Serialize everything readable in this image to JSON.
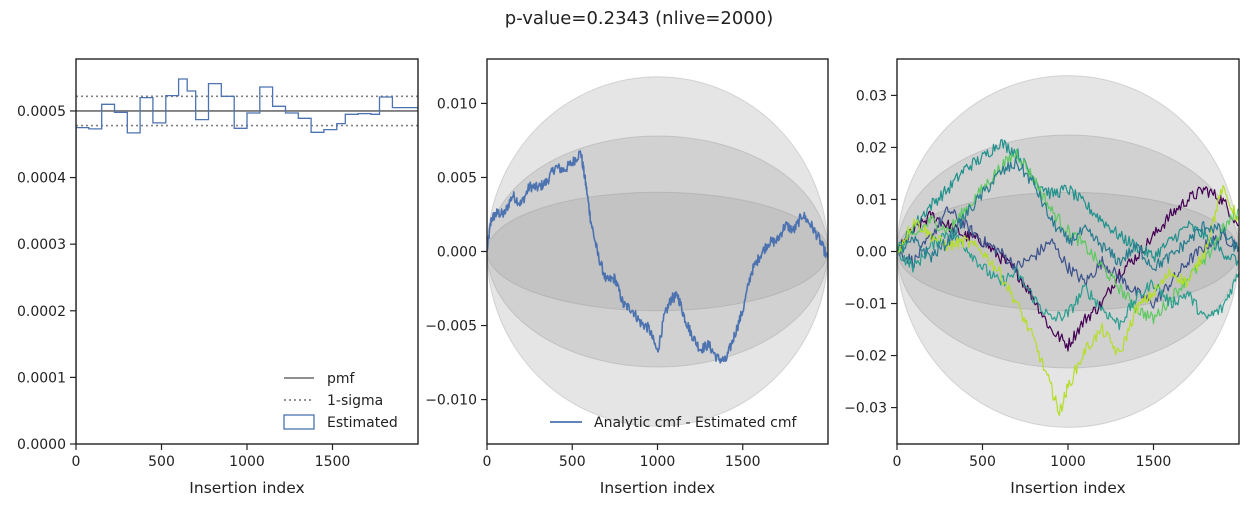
{
  "figure": {
    "title": "p-value=0.2343 (nlive=2000)"
  },
  "chart_data": [
    {
      "type": "line",
      "panel": "pmf-histogram",
      "xlabel": "Insertion index",
      "ylabel": "",
      "xlim": [
        0,
        2000
      ],
      "ylim": [
        0,
        0.000578
      ],
      "xticks": [
        0,
        500,
        1000,
        1500
      ],
      "xtick_labels": [
        "0",
        "500",
        "1000",
        "1500"
      ],
      "yticks": [
        0,
        0.0001,
        0.0002,
        0.0003,
        0.0004,
        0.0005
      ],
      "ytick_labels": [
        "0.0000",
        "0.0001",
        "0.0002",
        "0.0003",
        "0.0004",
        "0.0005"
      ],
      "pmf": 0.0005,
      "sigma_band": [
        0.000478,
        0.000522
      ],
      "hist_bin_edges": [
        0,
        75,
        150,
        225,
        300,
        375,
        450,
        525,
        600,
        650,
        700,
        775,
        850,
        925,
        1000,
        1075,
        1150,
        1225,
        1300,
        1375,
        1450,
        1525,
        1575,
        1650,
        1725,
        1775,
        1850,
        1925,
        2000
      ],
      "hist_values": [
        0.000475,
        0.000473,
        0.00051,
        0.000498,
        0.000467,
        0.00052,
        0.000482,
        0.000523,
        0.000548,
        0.00053,
        0.000487,
        0.000541,
        0.000522,
        0.000474,
        0.000497,
        0.000536,
        0.000507,
        0.000497,
        0.000489,
        0.000468,
        0.000472,
        0.000481,
        0.000495,
        0.000496,
        0.000495,
        0.000521,
        0.000505,
        0.000505
      ],
      "legend": {
        "position": "lower right",
        "entries": [
          {
            "label": "pmf",
            "style": "solid",
            "color": "#808080"
          },
          {
            "label": "1-sigma",
            "style": "dotted",
            "color": "#808080"
          },
          {
            "label": "Estimated",
            "style": "step",
            "color": "#4c72b0"
          }
        ]
      },
      "colors": {
        "pmf": "#808080",
        "hist": "#4c72b0"
      }
    },
    {
      "type": "line",
      "panel": "cmf-difference",
      "xlabel": "Insertion index",
      "ylabel": "",
      "xlim": [
        0,
        2000
      ],
      "ylim": [
        -0.013,
        0.013
      ],
      "xticks": [
        0,
        500,
        1000,
        1500
      ],
      "xtick_labels": [
        "0",
        "500",
        "1000",
        "1500"
      ],
      "yticks": [
        -0.01,
        -0.005,
        0,
        0.005,
        0.01
      ],
      "ytick_labels": [
        "−0.010",
        "−0.005",
        "0.000",
        "0.005",
        "0.010"
      ],
      "sigma_bands": [
        0.004,
        0.0078,
        0.0118
      ],
      "series": [
        {
          "name": "Analytic cmf - Estimated cmf",
          "color": "#4c72b0",
          "x": [
            0,
            25,
            60,
            100,
            150,
            200,
            250,
            300,
            350,
            400,
            450,
            500,
            550,
            580,
            610,
            650,
            700,
            750,
            800,
            850,
            900,
            950,
            1000,
            1040,
            1080,
            1120,
            1160,
            1200,
            1250,
            1300,
            1350,
            1400,
            1450,
            1500,
            1550,
            1600,
            1650,
            1700,
            1750,
            1800,
            1850,
            1900,
            1950,
            2000
          ],
          "y": [
            0.0,
            0.0022,
            0.0026,
            0.0025,
            0.0038,
            0.0032,
            0.0044,
            0.0043,
            0.0047,
            0.0057,
            0.0055,
            0.006,
            0.0067,
            0.0045,
            0.002,
            -0.0002,
            -0.002,
            -0.0018,
            -0.0036,
            -0.0039,
            -0.0048,
            -0.0052,
            -0.0068,
            -0.0044,
            -0.0032,
            -0.003,
            -0.0045,
            -0.0056,
            -0.0066,
            -0.0063,
            -0.0072,
            -0.0074,
            -0.0057,
            -0.004,
            -0.0014,
            -0.0003,
            0.0006,
            0.0007,
            0.0018,
            0.0014,
            0.0025,
            0.0018,
            0.0008,
            -0.0005
          ]
        }
      ],
      "legend": {
        "position": "lower right",
        "entries": [
          {
            "label": "Analytic cmf - Estimated cmf",
            "style": "solid",
            "color": "#4c72b0"
          }
        ]
      }
    },
    {
      "type": "line",
      "panel": "cmf-difference-runs",
      "xlabel": "Insertion index",
      "ylabel": "",
      "xlim": [
        0,
        2000
      ],
      "ylim": [
        -0.037,
        0.037
      ],
      "xticks": [
        0,
        500,
        1000,
        1500
      ],
      "xtick_labels": [
        "0",
        "500",
        "1000",
        "1500"
      ],
      "yticks": [
        -0.03,
        -0.02,
        -0.01,
        0,
        0.01,
        0.02,
        0.03
      ],
      "ytick_labels": [
        "−0.03",
        "−0.02",
        "−0.01",
        "0.00",
        "0.01",
        "0.02",
        "0.03"
      ],
      "sigma_bands": [
        0.0114,
        0.0224,
        0.0338
      ],
      "series": [
        {
          "color": "#440154",
          "x": [
            0,
            100,
            200,
            300,
            400,
            500,
            600,
            700,
            800,
            900,
            1000,
            1100,
            1200,
            1300,
            1400,
            1500,
            1600,
            1700,
            1800,
            1900,
            2000
          ],
          "y": [
            0.0,
            0.004,
            0.007,
            0.005,
            0.003,
            0.002,
            -0.001,
            -0.004,
            -0.009,
            -0.015,
            -0.018,
            -0.013,
            -0.01,
            -0.004,
            -0.001,
            0.003,
            0.007,
            0.01,
            0.012,
            0.01,
            0.005
          ]
        },
        {
          "color": "#3b528b",
          "x": [
            0,
            100,
            200,
            300,
            400,
            500,
            600,
            700,
            800,
            900,
            1000,
            1100,
            1200,
            1300,
            1400,
            1500,
            1600,
            1700,
            1800,
            1900,
            2000
          ],
          "y": [
            0.0,
            -0.002,
            0.003,
            0.008,
            0.005,
            0.002,
            0.0,
            -0.003,
            -0.001,
            0.002,
            -0.003,
            -0.006,
            -0.002,
            -0.005,
            -0.008,
            -0.01,
            -0.006,
            -0.002,
            0.001,
            0.003,
            0.001
          ]
        },
        {
          "color": "#21918c",
          "x": [
            0,
            100,
            200,
            300,
            400,
            500,
            600,
            700,
            800,
            900,
            1000,
            1100,
            1200,
            1300,
            1400,
            1500,
            1600,
            1700,
            1800,
            1900,
            2000
          ],
          "y": [
            0.0,
            0.005,
            0.009,
            0.012,
            0.016,
            0.018,
            0.021,
            0.019,
            0.014,
            0.011,
            0.012,
            0.009,
            0.006,
            0.003,
            0.001,
            -0.001,
            0.002,
            0.005,
            0.003,
            0.0,
            -0.002
          ]
        },
        {
          "color": "#5ec962",
          "x": [
            0,
            100,
            200,
            300,
            400,
            500,
            600,
            700,
            800,
            900,
            1000,
            1100,
            1200,
            1300,
            1400,
            1500,
            1600,
            1700,
            1800,
            1900,
            2000
          ],
          "y": [
            0.0,
            0.003,
            0.006,
            0.004,
            0.008,
            0.012,
            0.016,
            0.019,
            0.014,
            0.008,
            0.004,
            0.001,
            -0.003,
            -0.007,
            -0.011,
            -0.013,
            -0.009,
            -0.005,
            -0.002,
            0.004,
            0.008
          ]
        },
        {
          "color": "#2a9d8f",
          "x": [
            0,
            100,
            200,
            300,
            400,
            500,
            600,
            700,
            800,
            900,
            1000,
            1100,
            1200,
            1300,
            1400,
            1500,
            1600,
            1700,
            1800,
            1900,
            2000
          ],
          "y": [
            0.0,
            -0.003,
            0.001,
            0.004,
            0.001,
            -0.003,
            -0.006,
            -0.004,
            -0.009,
            -0.013,
            -0.012,
            -0.007,
            -0.011,
            -0.014,
            -0.009,
            -0.006,
            -0.01,
            -0.008,
            -0.013,
            -0.011,
            -0.004
          ]
        },
        {
          "color": "#b5de2b",
          "x": [
            0,
            100,
            200,
            300,
            400,
            500,
            600,
            700,
            800,
            900,
            950,
            1000,
            1100,
            1200,
            1300,
            1400,
            1500,
            1600,
            1700,
            1800,
            1900,
            2000
          ],
          "y": [
            0.0,
            0.006,
            0.003,
            0.001,
            0.002,
            0.0,
            -0.004,
            -0.01,
            -0.017,
            -0.026,
            -0.031,
            -0.026,
            -0.019,
            -0.015,
            -0.02,
            -0.011,
            -0.008,
            -0.004,
            -0.006,
            0.0,
            0.012,
            0.006
          ]
        },
        {
          "color": "#287c8e",
          "x": [
            0,
            100,
            200,
            300,
            400,
            500,
            600,
            700,
            800,
            900,
            1000,
            1100,
            1200,
            1300,
            1400,
            1500,
            1600,
            1700,
            1800,
            1900,
            2000
          ],
          "y": [
            0.0,
            0.002,
            -0.001,
            0.002,
            0.007,
            0.011,
            0.015,
            0.017,
            0.013,
            0.006,
            0.002,
            0.004,
            0.001,
            -0.002,
            0.001,
            -0.003,
            -0.001,
            0.002,
            0.005,
            0.004,
            0.0
          ]
        }
      ]
    }
  ]
}
